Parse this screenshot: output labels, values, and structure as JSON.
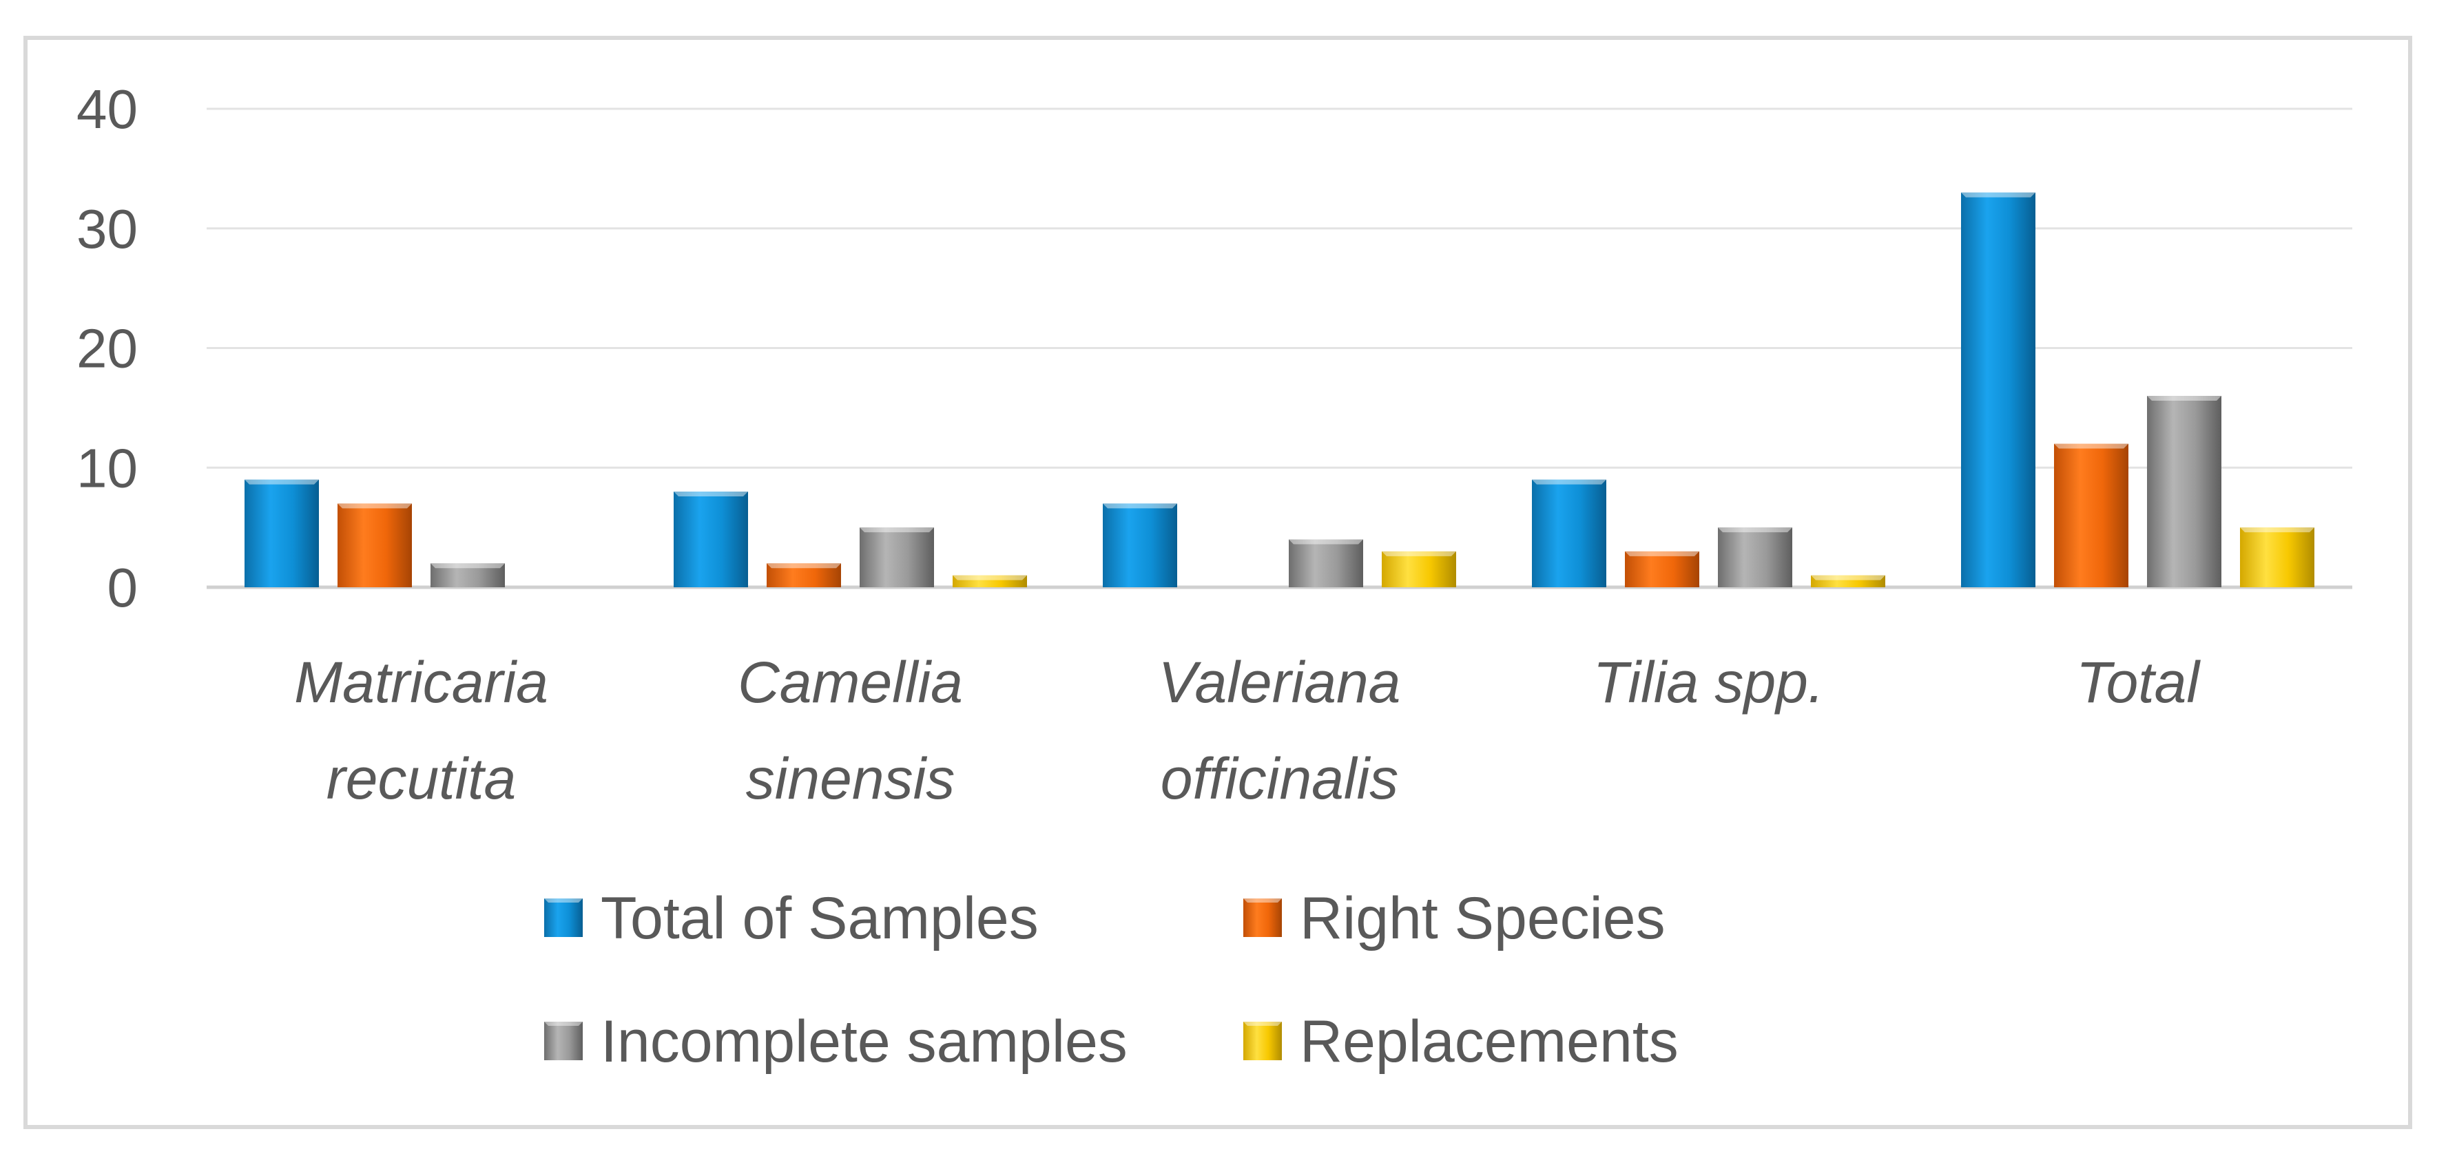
{
  "chart_data": {
    "type": "bar",
    "title": "",
    "xlabel": "",
    "ylabel": "",
    "ylim": [
      0,
      40
    ],
    "yticks": [
      0,
      10,
      20,
      30,
      40
    ],
    "grid": true,
    "legend_position": "bottom",
    "categories": [
      [
        "Matricaria",
        "recutita"
      ],
      [
        "Camellia",
        "sinensis"
      ],
      [
        "Valeriana",
        "officinalis"
      ],
      [
        "Tilia spp."
      ],
      [
        "Total"
      ]
    ],
    "series": [
      {
        "name": "Total of Samples",
        "color": "#0E8FD6",
        "values": [
          9,
          8,
          7,
          9,
          33
        ]
      },
      {
        "name": "Right Species",
        "color": "#F0670A",
        "values": [
          7,
          2,
          0,
          3,
          12
        ]
      },
      {
        "name": "Incomplete samples",
        "color": "#9A9A9A",
        "values": [
          2,
          5,
          4,
          5,
          16
        ]
      },
      {
        "name": "Replacements",
        "color": "#F7C800",
        "values": [
          0,
          1,
          3,
          1,
          5
        ]
      }
    ]
  }
}
